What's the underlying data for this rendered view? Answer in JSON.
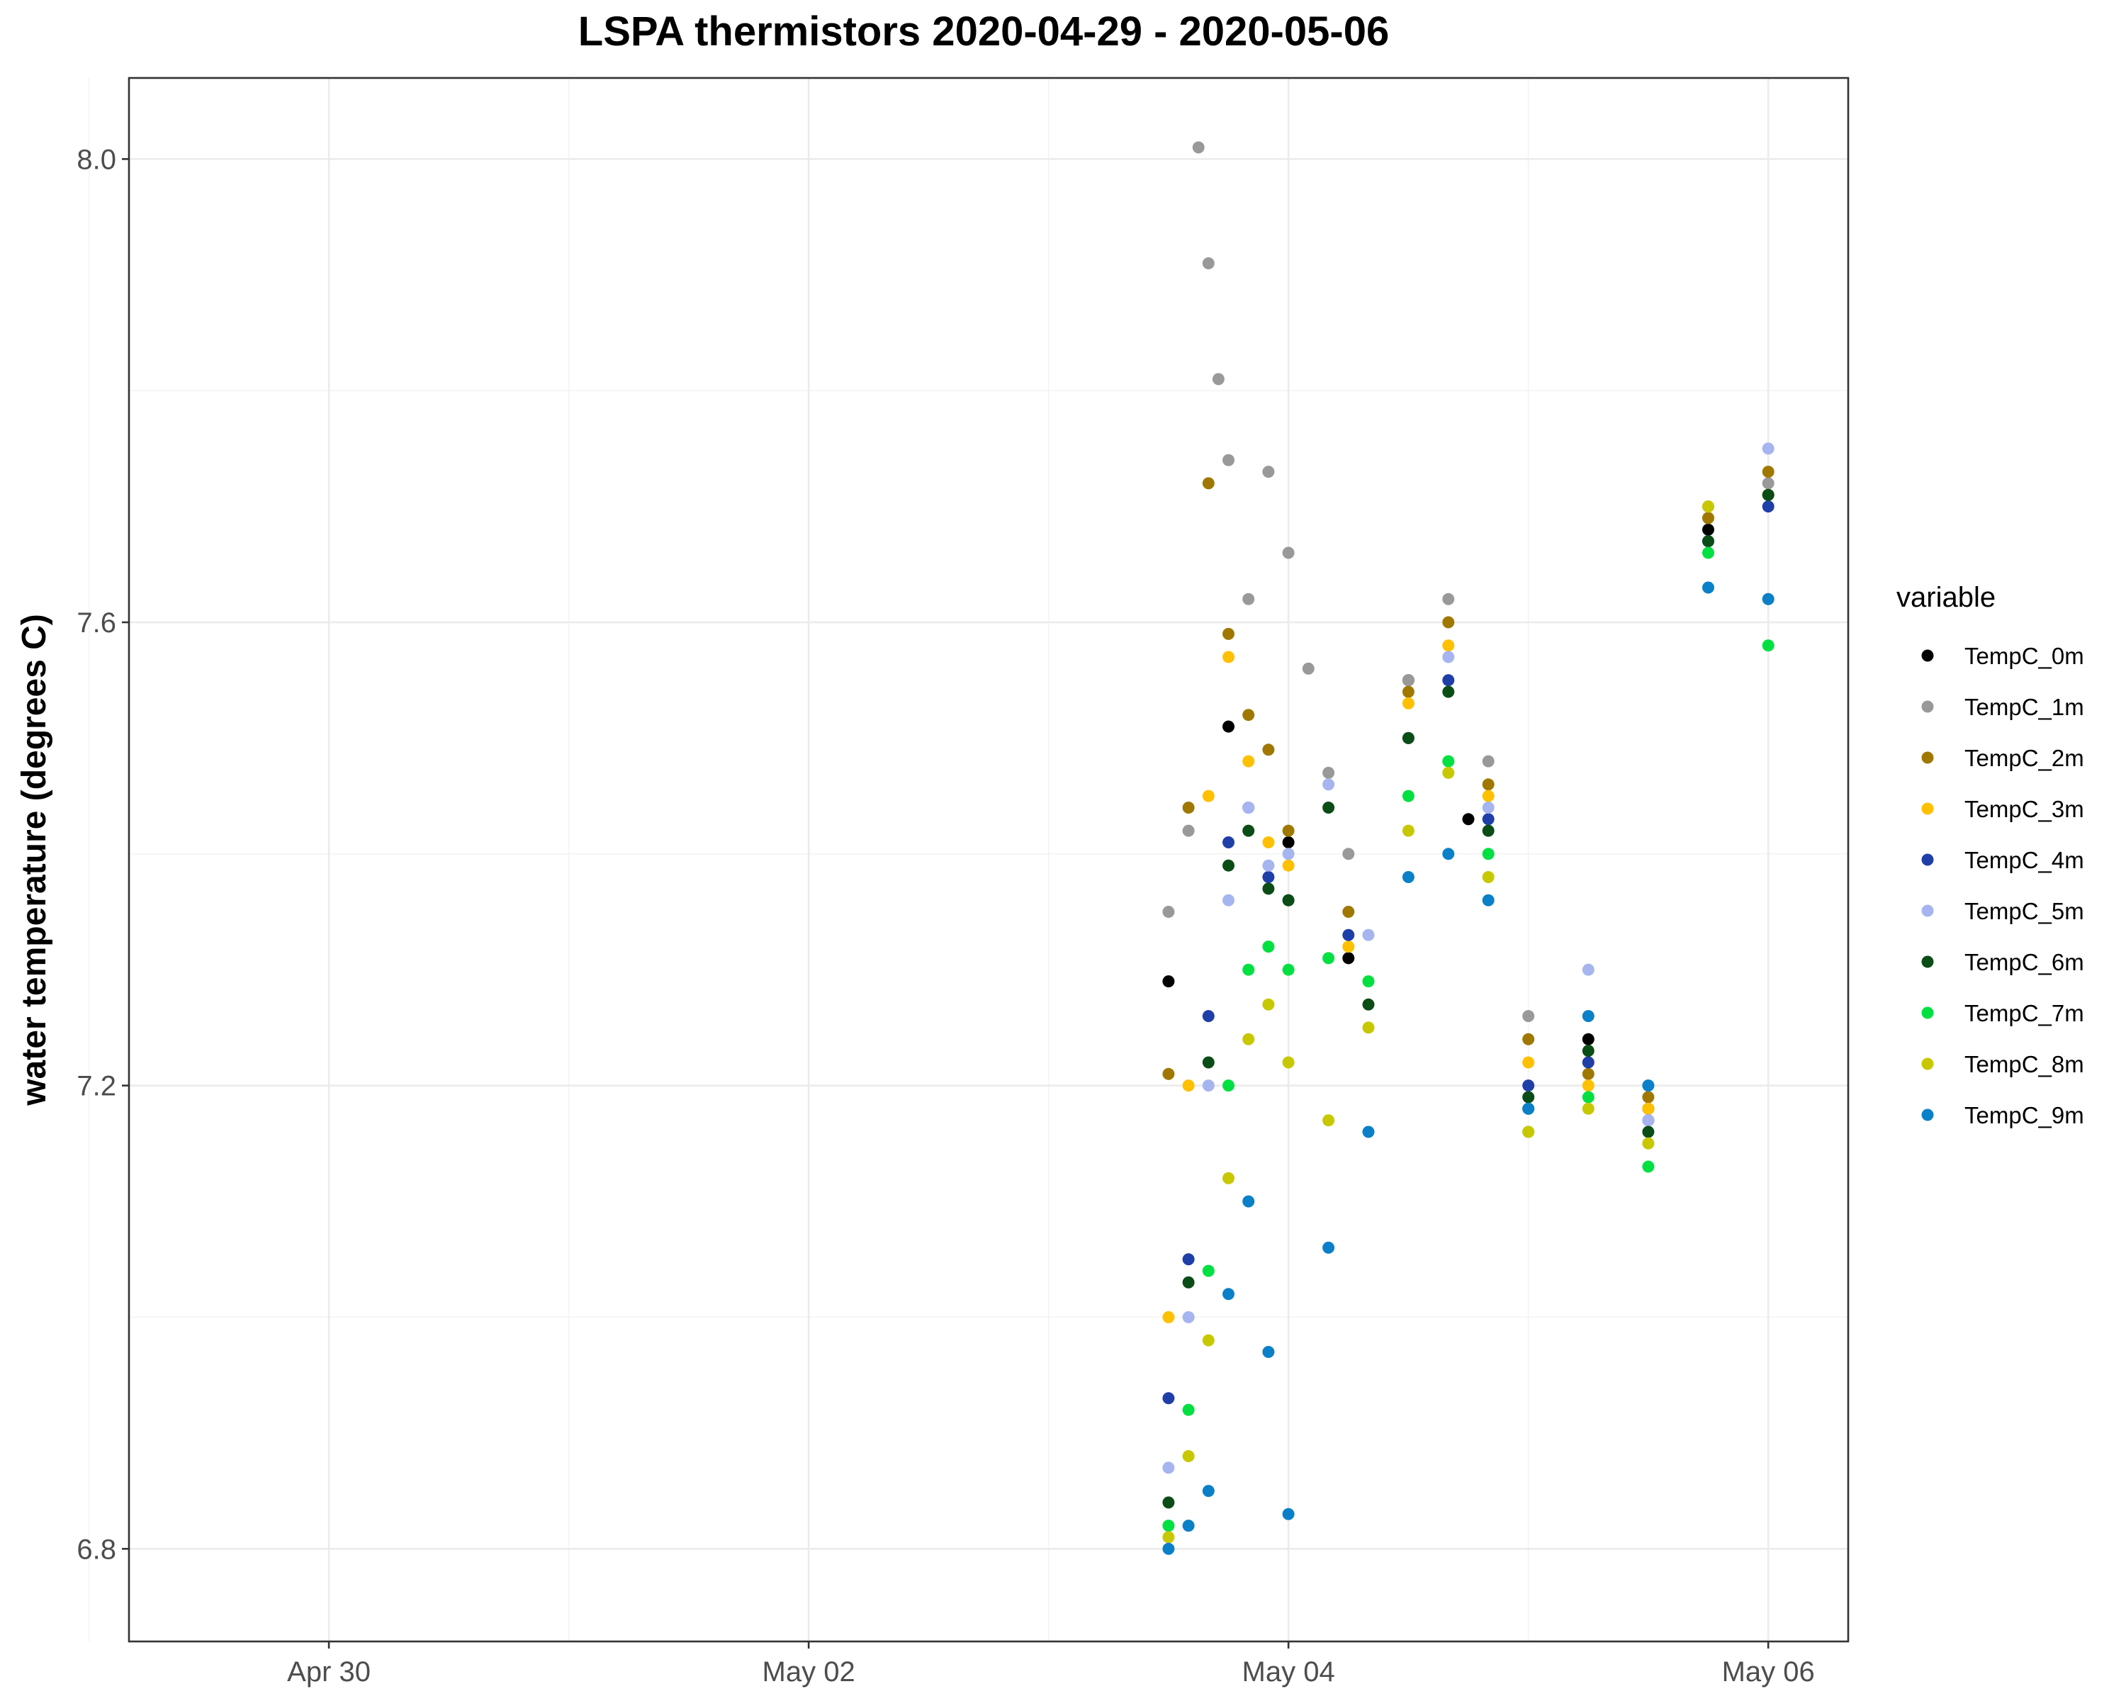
{
  "chart_data": {
    "type": "scatter",
    "title": "LSPA thermistors 2020-04-29 - 2020-05-06",
    "xlabel": "",
    "ylabel": "water temperature (degrees C)",
    "x_type": "date",
    "xlim": [
      "2020-04-29T04:00",
      "2020-05-06T08:00"
    ],
    "ylim": [
      6.72,
      8.07
    ],
    "x_ticks": [
      {
        "value": "2020-04-30T00:00",
        "label": "Apr 30"
      },
      {
        "value": "2020-05-02T00:00",
        "label": "May 02"
      },
      {
        "value": "2020-05-04T00:00",
        "label": "May 04"
      },
      {
        "value": "2020-05-06T00:00",
        "label": "May 06"
      }
    ],
    "x_minor_ticks": [
      "2020-04-29T00:00",
      "2020-05-01T00:00",
      "2020-05-03T00:00",
      "2020-05-05T00:00"
    ],
    "y_ticks": [
      6.8,
      7.2,
      7.6,
      8.0
    ],
    "y_tick_labels": [
      "6.8",
      "7.2",
      "7.6",
      "8.0"
    ],
    "y_minor_ticks": [
      7.0,
      7.4,
      7.8
    ],
    "grid": true,
    "legend": {
      "title": "variable",
      "position": "right"
    },
    "series": [
      {
        "name": "TempC_0m",
        "color": "#000000",
        "points": [
          [
            "2020-05-03T12:00",
            7.29
          ],
          [
            "2020-05-03T18:00",
            7.51
          ],
          [
            "2020-05-04T00:00",
            7.41
          ],
          [
            "2020-05-04T06:00",
            7.31
          ],
          [
            "2020-05-04T12:00",
            7.55
          ],
          [
            "2020-05-04T18:00",
            7.43
          ],
          [
            "2020-05-05T00:00",
            7.18
          ],
          [
            "2020-05-05T06:00",
            7.24
          ],
          [
            "2020-05-05T12:00",
            7.18
          ],
          [
            "2020-05-05T18:00",
            7.68
          ],
          [
            "2020-05-06T00:00",
            7.71
          ]
        ]
      },
      {
        "name": "TempC_1m",
        "color": "#999999",
        "points": [
          [
            "2020-05-03T12:00",
            7.35
          ],
          [
            "2020-05-03T14:00",
            7.42
          ],
          [
            "2020-05-03T15:00",
            8.01
          ],
          [
            "2020-05-03T16:00",
            7.91
          ],
          [
            "2020-05-03T17:00",
            7.81
          ],
          [
            "2020-05-03T18:00",
            7.74
          ],
          [
            "2020-05-03T20:00",
            7.62
          ],
          [
            "2020-05-03T22:00",
            7.73
          ],
          [
            "2020-05-04T00:00",
            7.66
          ],
          [
            "2020-05-04T02:00",
            7.56
          ],
          [
            "2020-05-04T04:00",
            7.47
          ],
          [
            "2020-05-04T06:00",
            7.4
          ],
          [
            "2020-05-04T12:00",
            7.55
          ],
          [
            "2020-05-04T16:00",
            7.62
          ],
          [
            "2020-05-04T20:00",
            7.48
          ],
          [
            "2020-05-05T00:00",
            7.26
          ],
          [
            "2020-05-05T06:00",
            7.22
          ],
          [
            "2020-05-05T12:00",
            7.2
          ],
          [
            "2020-05-05T18:00",
            7.69
          ],
          [
            "2020-05-06T00:00",
            7.72
          ]
        ]
      },
      {
        "name": "TempC_2m",
        "color": "#a07800",
        "points": [
          [
            "2020-05-03T12:00",
            7.21
          ],
          [
            "2020-05-03T14:00",
            7.44
          ],
          [
            "2020-05-03T16:00",
            7.72
          ],
          [
            "2020-05-03T18:00",
            7.59
          ],
          [
            "2020-05-03T20:00",
            7.52
          ],
          [
            "2020-05-03T22:00",
            7.49
          ],
          [
            "2020-05-04T00:00",
            7.42
          ],
          [
            "2020-05-04T06:00",
            7.35
          ],
          [
            "2020-05-04T12:00",
            7.54
          ],
          [
            "2020-05-04T16:00",
            7.6
          ],
          [
            "2020-05-04T20:00",
            7.46
          ],
          [
            "2020-05-05T00:00",
            7.24
          ],
          [
            "2020-05-05T06:00",
            7.21
          ],
          [
            "2020-05-05T12:00",
            7.19
          ],
          [
            "2020-05-05T18:00",
            7.69
          ],
          [
            "2020-05-06T00:00",
            7.73
          ]
        ]
      },
      {
        "name": "TempC_3m",
        "color": "#ffc000",
        "points": [
          [
            "2020-05-03T12:00",
            7.0
          ],
          [
            "2020-05-03T14:00",
            7.2
          ],
          [
            "2020-05-03T16:00",
            7.45
          ],
          [
            "2020-05-03T18:00",
            7.57
          ],
          [
            "2020-05-03T20:00",
            7.48
          ],
          [
            "2020-05-03T22:00",
            7.41
          ],
          [
            "2020-05-04T00:00",
            7.39
          ],
          [
            "2020-05-04T06:00",
            7.32
          ],
          [
            "2020-05-04T12:00",
            7.53
          ],
          [
            "2020-05-04T16:00",
            7.58
          ],
          [
            "2020-05-04T20:00",
            7.45
          ],
          [
            "2020-05-05T00:00",
            7.22
          ],
          [
            "2020-05-05T06:00",
            7.2
          ],
          [
            "2020-05-05T12:00",
            7.18
          ],
          [
            "2020-05-05T18:00",
            7.7
          ],
          [
            "2020-05-06T00:00",
            7.71
          ]
        ]
      },
      {
        "name": "TempC_4m",
        "color": "#1f3fa8",
        "points": [
          [
            "2020-05-03T12:00",
            6.93
          ],
          [
            "2020-05-03T14:00",
            7.05
          ],
          [
            "2020-05-03T16:00",
            7.26
          ],
          [
            "2020-05-03T18:00",
            7.41
          ],
          [
            "2020-05-03T20:00",
            7.44
          ],
          [
            "2020-05-03T22:00",
            7.38
          ],
          [
            "2020-05-04T00:00",
            7.36
          ],
          [
            "2020-05-04T06:00",
            7.33
          ],
          [
            "2020-05-04T12:00",
            7.5
          ],
          [
            "2020-05-04T16:00",
            7.55
          ],
          [
            "2020-05-04T20:00",
            7.43
          ],
          [
            "2020-05-05T00:00",
            7.2
          ],
          [
            "2020-05-05T06:00",
            7.22
          ],
          [
            "2020-05-05T12:00",
            7.17
          ],
          [
            "2020-05-05T18:00",
            7.67
          ],
          [
            "2020-05-06T00:00",
            7.7
          ]
        ]
      },
      {
        "name": "TempC_5m",
        "color": "#a6b4f0",
        "points": [
          [
            "2020-05-03T12:00",
            6.87
          ],
          [
            "2020-05-03T14:00",
            7.0
          ],
          [
            "2020-05-03T16:00",
            7.2
          ],
          [
            "2020-05-03T18:00",
            7.36
          ],
          [
            "2020-05-03T20:00",
            7.44
          ],
          [
            "2020-05-03T22:00",
            7.39
          ],
          [
            "2020-05-04T00:00",
            7.4
          ],
          [
            "2020-05-04T04:00",
            7.46
          ],
          [
            "2020-05-04T08:00",
            7.33
          ],
          [
            "2020-05-04T12:00",
            7.5
          ],
          [
            "2020-05-04T16:00",
            7.57
          ],
          [
            "2020-05-04T20:00",
            7.44
          ],
          [
            "2020-05-05T00:00",
            7.19
          ],
          [
            "2020-05-05T06:00",
            7.3
          ],
          [
            "2020-05-05T12:00",
            7.17
          ],
          [
            "2020-05-05T18:00",
            7.7
          ],
          [
            "2020-05-06T00:00",
            7.75
          ]
        ]
      },
      {
        "name": "TempC_6m",
        "color": "#0b4d16",
        "points": [
          [
            "2020-05-03T12:00",
            6.84
          ],
          [
            "2020-05-03T14:00",
            7.03
          ],
          [
            "2020-05-03T16:00",
            7.22
          ],
          [
            "2020-05-03T18:00",
            7.39
          ],
          [
            "2020-05-03T20:00",
            7.42
          ],
          [
            "2020-05-03T22:00",
            7.37
          ],
          [
            "2020-05-04T00:00",
            7.36
          ],
          [
            "2020-05-04T04:00",
            7.44
          ],
          [
            "2020-05-04T08:00",
            7.27
          ],
          [
            "2020-05-04T12:00",
            7.5
          ],
          [
            "2020-05-04T16:00",
            7.54
          ],
          [
            "2020-05-04T20:00",
            7.42
          ],
          [
            "2020-05-05T00:00",
            7.19
          ],
          [
            "2020-05-05T06:00",
            7.23
          ],
          [
            "2020-05-05T12:00",
            7.16
          ],
          [
            "2020-05-05T18:00",
            7.67
          ],
          [
            "2020-05-06T00:00",
            7.71
          ]
        ]
      },
      {
        "name": "TempC_7m",
        "color": "#00e040",
        "points": [
          [
            "2020-05-03T12:00",
            6.82
          ],
          [
            "2020-05-03T14:00",
            6.92
          ],
          [
            "2020-05-03T16:00",
            7.04
          ],
          [
            "2020-05-03T18:00",
            7.2
          ],
          [
            "2020-05-03T20:00",
            7.3
          ],
          [
            "2020-05-03T22:00",
            7.32
          ],
          [
            "2020-05-04T00:00",
            7.3
          ],
          [
            "2020-05-04T04:00",
            7.31
          ],
          [
            "2020-05-04T08:00",
            7.29
          ],
          [
            "2020-05-04T12:00",
            7.45
          ],
          [
            "2020-05-04T16:00",
            7.48
          ],
          [
            "2020-05-04T20:00",
            7.4
          ],
          [
            "2020-05-05T00:00",
            7.16
          ],
          [
            "2020-05-05T06:00",
            7.19
          ],
          [
            "2020-05-05T12:00",
            7.13
          ],
          [
            "2020-05-05T18:00",
            7.66
          ],
          [
            "2020-05-06T00:00",
            7.58
          ]
        ]
      },
      {
        "name": "TempC_8m",
        "color": "#c8c800",
        "points": [
          [
            "2020-05-03T12:00",
            6.81
          ],
          [
            "2020-05-03T14:00",
            6.88
          ],
          [
            "2020-05-03T16:00",
            6.98
          ],
          [
            "2020-05-03T18:00",
            7.12
          ],
          [
            "2020-05-03T20:00",
            7.24
          ],
          [
            "2020-05-03T22:00",
            7.27
          ],
          [
            "2020-05-04T00:00",
            7.22
          ],
          [
            "2020-05-04T04:00",
            7.17
          ],
          [
            "2020-05-04T08:00",
            7.25
          ],
          [
            "2020-05-04T12:00",
            7.42
          ],
          [
            "2020-05-04T16:00",
            7.47
          ],
          [
            "2020-05-04T20:00",
            7.38
          ],
          [
            "2020-05-05T00:00",
            7.16
          ],
          [
            "2020-05-05T06:00",
            7.18
          ],
          [
            "2020-05-05T12:00",
            7.15
          ],
          [
            "2020-05-05T18:00",
            7.7
          ],
          [
            "2020-05-06T00:00",
            7.62
          ]
        ]
      },
      {
        "name": "TempC_9m",
        "color": "#0a80c8",
        "points": [
          [
            "2020-05-03T12:00",
            6.8
          ],
          [
            "2020-05-03T14:00",
            6.82
          ],
          [
            "2020-05-03T16:00",
            6.85
          ],
          [
            "2020-05-03T18:00",
            7.02
          ],
          [
            "2020-05-03T20:00",
            7.1
          ],
          [
            "2020-05-03T22:00",
            6.97
          ],
          [
            "2020-05-04T00:00",
            6.83
          ],
          [
            "2020-05-04T04:00",
            7.06
          ],
          [
            "2020-05-04T08:00",
            7.16
          ],
          [
            "2020-05-04T12:00",
            7.38
          ],
          [
            "2020-05-04T16:00",
            7.4
          ],
          [
            "2020-05-04T20:00",
            7.36
          ],
          [
            "2020-05-05T00:00",
            7.18
          ],
          [
            "2020-05-05T06:00",
            7.26
          ],
          [
            "2020-05-05T12:00",
            7.2
          ],
          [
            "2020-05-05T18:00",
            7.63
          ],
          [
            "2020-05-06T00:00",
            7.62
          ]
        ]
      }
    ]
  }
}
